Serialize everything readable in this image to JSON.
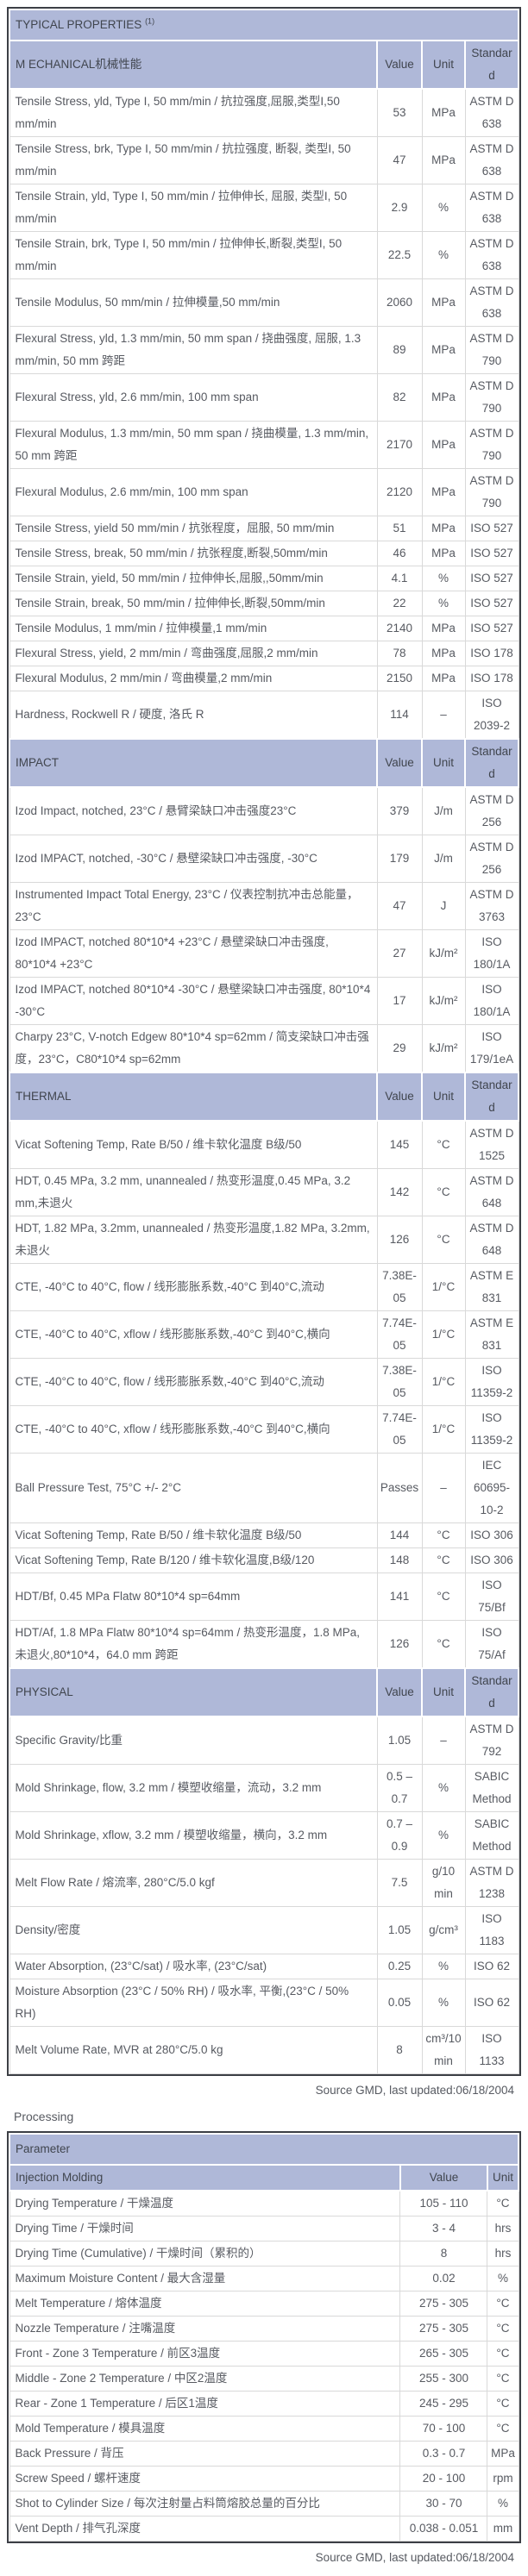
{
  "colors": {
    "header_bg": "#afb8d8",
    "header_text": "#40454e",
    "body_text": "#575a61",
    "grid_line": "#d9d9d9",
    "outer_border": "#3c3f45"
  },
  "typical_properties": {
    "title": "TYPICAL PROPERTIES",
    "title_note": "(1)",
    "columns": {
      "value": "Value",
      "unit": "Unit",
      "standard": "Standard"
    },
    "source_note": "Source GMD, last updated:06/18/2004",
    "sections": [
      {
        "label": "M ECHANICAL机械性能",
        "rows": [
          {
            "property": "Tensile Stress, yld, Type I, 50 mm/min / 抗拉强度,屈服,类型I,50 mm/min",
            "value": "53",
            "unit": "MPa",
            "standard": "ASTM D 638"
          },
          {
            "property": "Tensile Stress, brk, Type I, 50 mm/min / 抗拉强度, 断裂, 类型I, 50 mm/min",
            "value": "47",
            "unit": "MPa",
            "standard": "ASTM D 638"
          },
          {
            "property": "Tensile Strain, yld, Type I, 50 mm/min / 拉伸伸长, 屈服, 类型I, 50 mm/min",
            "value": "2.9",
            "unit": "%",
            "standard": "ASTM D 638"
          },
          {
            "property": "Tensile Strain, brk, Type I, 50 mm/min / 拉伸伸长,断裂,类型I, 50 mm/min",
            "value": "22.5",
            "unit": "%",
            "standard": "ASTM D 638"
          },
          {
            "property": "Tensile Modulus, 50 mm/min / 拉伸模量,50 mm/min",
            "value": "2060",
            "unit": "MPa",
            "standard": "ASTM D 638"
          },
          {
            "property": "Flexural Stress, yld, 1.3 mm/min, 50 mm span / 挠曲强度, 屈服, 1.3 mm/min, 50 mm 跨距",
            "value": "89",
            "unit": "MPa",
            "standard": "ASTM D 790"
          },
          {
            "property": "Flexural Stress, yld, 2.6 mm/min, 100 mm span",
            "value": "82",
            "unit": "MPa",
            "standard": "ASTM D 790"
          },
          {
            "property": "Flexural Modulus, 1.3 mm/min, 50 mm span / 挠曲模量, 1.3 mm/min, 50 mm 跨距",
            "value": "2170",
            "unit": "MPa",
            "standard": "ASTM D 790"
          },
          {
            "property": "Flexural Modulus, 2.6 mm/min, 100 mm span",
            "value": "2120",
            "unit": "MPa",
            "standard": "ASTM D 790"
          },
          {
            "property": "Tensile Stress, yield 50 mm/min / 抗张程度，屈服, 50 mm/min",
            "value": "51",
            "unit": "MPa",
            "standard": "ISO 527"
          },
          {
            "property": "Tensile Stress, break, 50 mm/min / 抗张程度,断裂,50mm/min",
            "value": "46",
            "unit": "MPa",
            "standard": "ISO 527"
          },
          {
            "property": "Tensile Strain, yield, 50 mm/min / 拉伸伸长,屈服,,50mm/min",
            "value": "4.1",
            "unit": "%",
            "standard": "ISO 527"
          },
          {
            "property": "Tensile Strain, break, 50 mm/min / 拉伸伸长,断裂,50mm/min",
            "value": "22",
            "unit": "%",
            "standard": "ISO 527"
          },
          {
            "property": "Tensile Modulus, 1 mm/min / 拉伸模量,1 mm/min",
            "value": "2140",
            "unit": "MPa",
            "standard": "ISO 527"
          },
          {
            "property": "Flexural Stress, yield, 2 mm/min / 弯曲强度,屈服,2 mm/min",
            "value": "78",
            "unit": "MPa",
            "standard": "ISO 178"
          },
          {
            "property": "Flexural Modulus, 2 mm/min / 弯曲模量,2 mm/min",
            "value": "2150",
            "unit": "MPa",
            "standard": "ISO 178"
          },
          {
            "property": "Hardness, Rockwell R / 硬度, 洛氏 R",
            "value": "114",
            "unit": "–",
            "standard": "ISO 2039-2"
          }
        ]
      },
      {
        "label": "IMPACT",
        "rows": [
          {
            "property": "Izod Impact, notched, 23°C / 悬臂梁缺口冲击强度23°C",
            "value": "379",
            "unit": "J/m",
            "standard": "ASTM D 256"
          },
          {
            "property": "Izod IMPACT, notched, -30°C / 悬壁梁缺口冲击强度, -30°C",
            "value": "179",
            "unit": "J/m",
            "standard": "ASTM D 256"
          },
          {
            "property": "Instrumented Impact Total Energy, 23°C / 仪表控制抗冲击总能量，23°C",
            "value": "47",
            "unit": "J",
            "standard": "ASTM D 3763"
          },
          {
            "property": "Izod IMPACT, notched 80*10*4 +23°C / 悬壁梁缺口冲击强度, 80*10*4 +23°C",
            "value": "27",
            "unit": "kJ/m²",
            "standard": "ISO 180/1A"
          },
          {
            "property": "Izod IMPACT, notched 80*10*4 -30°C / 悬壁梁缺口冲击强度, 80*10*4 -30°C",
            "value": "17",
            "unit": "kJ/m²",
            "standard": "ISO 180/1A"
          },
          {
            "property": "Charpy 23°C, V-notch Edgew 80*10*4 sp=62mm / 简支梁缺口冲击强度，23°C，C80*10*4 sp=62mm",
            "value": "29",
            "unit": "kJ/m²",
            "standard": "ISO 179/1eA"
          }
        ]
      },
      {
        "label": "THERMAL",
        "rows": [
          {
            "property": "Vicat Softening Temp, Rate B/50 / 维卡软化温度 B级/50",
            "value": "145",
            "unit": "°C",
            "standard": "ASTM D 1525"
          },
          {
            "property": "HDT, 0.45 MPa, 3.2 mm, unannealed / 热变形温度,0.45 MPa, 3.2 mm,未退火",
            "value": "142",
            "unit": "°C",
            "standard": "ASTM D 648"
          },
          {
            "property": "HDT, 1.82 MPa, 3.2mm, unannealed / 热变形温度,1.82 MPa, 3.2mm,未退火",
            "value": "126",
            "unit": "°C",
            "standard": "ASTM D 648"
          },
          {
            "property": "CTE, -40°C to 40°C, flow / 线形膨胀系数,-40°C 到40°C,流动",
            "value": "7.38E-05",
            "unit": "1/°C",
            "standard": "ASTM E 831"
          },
          {
            "property": "CTE, -40°C to 40°C, xflow / 线形膨胀系数,-40°C 到40°C,横向",
            "value": "7.74E-05",
            "unit": "1/°C",
            "standard": "ASTM E 831"
          },
          {
            "property": "CTE, -40°C to 40°C, flow / 线形膨胀系数,-40°C 到40°C,流动",
            "value": "7.38E-05",
            "unit": "1/°C",
            "standard": "ISO 11359-2"
          },
          {
            "property": "CTE, -40°C to 40°C, xflow / 线形膨胀系数,-40°C 到40°C,横向",
            "value": "7.74E-05",
            "unit": "1/°C",
            "standard": "ISO 11359-2"
          },
          {
            "property": "Ball Pressure Test, 75°C +/- 2°C",
            "value": "Passes",
            "unit": "–",
            "standard": "IEC 60695-10-2"
          },
          {
            "property": "Vicat Softening Temp, Rate B/50 / 维卡软化温度 B级/50",
            "value": "144",
            "unit": "°C",
            "standard": "ISO 306"
          },
          {
            "property": "Vicat Softening Temp, Rate B/120 / 维卡软化温度,B级/120",
            "value": "148",
            "unit": "°C",
            "standard": "ISO 306"
          },
          {
            "property": "HDT/Bf, 0.45 MPa Flatw 80*10*4 sp=64mm",
            "value": "141",
            "unit": "°C",
            "standard": "ISO 75/Bf"
          },
          {
            "property": "HDT/Af, 1.8 MPa Flatw 80*10*4 sp=64mm / 热变形温度，1.8 MPa, 未退火,80*10*4，64.0 mm 跨距",
            "value": "126",
            "unit": "°C",
            "standard": "ISO 75/Af"
          }
        ]
      },
      {
        "label": "PHYSICAL",
        "rows": [
          {
            "property": "Specific Gravity/比重",
            "value": "1.05",
            "unit": "–",
            "standard": "ASTM D 792"
          },
          {
            "property": "Mold Shrinkage, flow, 3.2 mm / 模塑收缩量，流动，3.2 mm",
            "value": "0.5 – 0.7",
            "unit": "%",
            "standard": "SABIC Method"
          },
          {
            "property": "Mold Shrinkage, xflow, 3.2 mm / 模塑收缩量，横向，3.2 mm",
            "value": "0.7 – 0.9",
            "unit": "%",
            "standard": "SABIC Method"
          },
          {
            "property": "Melt Flow Rate / 熔流率, 280°C/5.0 kgf",
            "value": "7.5",
            "unit": "g/10 min",
            "standard": "ASTM D 1238"
          },
          {
            "property": "Density/密度",
            "value": "1.05",
            "unit": "g/cm³",
            "standard": "ISO 1183"
          },
          {
            "property": "Water Absorption, (23°C/sat) / 吸水率, (23°C/sat)",
            "value": "0.25",
            "unit": "%",
            "standard": "ISO 62"
          },
          {
            "property": "Moisture Absorption (23°C / 50% RH) / 吸水率, 平衡,(23°C / 50% RH)",
            "value": "0.05",
            "unit": "%",
            "standard": "ISO 62"
          },
          {
            "property": "Melt Volume Rate, MVR at 280°C/5.0 kg",
            "value": "8",
            "unit": "cm³/10 min",
            "standard": "ISO 1133"
          }
        ]
      }
    ]
  },
  "processing": {
    "heading": "Processing",
    "header": "Parameter",
    "subheader_label": "Injection Molding",
    "columns": {
      "value": "Value",
      "unit": "Unit"
    },
    "source_note": "Source GMD, last updated:06/18/2004",
    "rows": [
      {
        "parameter": "Drying Temperature / 干燥温度",
        "value": "105 - 110",
        "unit": "°C"
      },
      {
        "parameter": "Drying Time / 干燥时间",
        "value": "3 - 4",
        "unit": "hrs"
      },
      {
        "parameter": "Drying Time (Cumulative) / 干燥时间（累积的）",
        "value": "8",
        "unit": "hrs"
      },
      {
        "parameter": "Maximum Moisture Content / 最大含湿量",
        "value": "0.02",
        "unit": "%"
      },
      {
        "parameter": "Melt Temperature / 熔体温度",
        "value": "275 - 305",
        "unit": "°C"
      },
      {
        "parameter": "Nozzle Temperature / 注嘴温度",
        "value": "275 - 305",
        "unit": "°C"
      },
      {
        "parameter": "Front - Zone 3 Temperature / 前区3温度",
        "value": "265 - 305",
        "unit": "°C"
      },
      {
        "parameter": "Middle - Zone 2 Temperature / 中区2温度",
        "value": "255 - 300",
        "unit": "°C"
      },
      {
        "parameter": "Rear - Zone 1 Temperature / 后区1温度",
        "value": "245 - 295",
        "unit": "°C"
      },
      {
        "parameter": "Mold Temperature / 模具温度",
        "value": "70 - 100",
        "unit": "°C"
      },
      {
        "parameter": "Back Pressure / 背压",
        "value": "0.3 - 0.7",
        "unit": "MPa"
      },
      {
        "parameter": "Screw Speed / 螺杆速度",
        "value": "20 - 100",
        "unit": "rpm"
      },
      {
        "parameter": "Shot to Cylinder Size / 每次注射量占料筒熔胶总量的百分比",
        "value": "30 - 70",
        "unit": "%"
      },
      {
        "parameter": "Vent Depth / 排气孔深度",
        "value": "0.038 - 0.051",
        "unit": "mm"
      }
    ]
  }
}
